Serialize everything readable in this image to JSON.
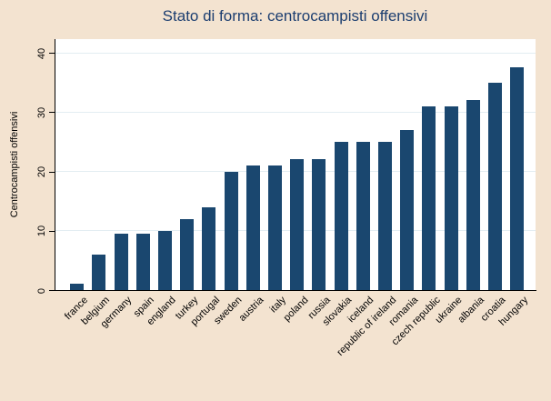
{
  "figure": {
    "background_color": "#f3e3d0",
    "plot_background_color": "#ffffff",
    "bar_color": "#1a476f",
    "grid_color": "#e3edf2",
    "title_color": "#1c3e70",
    "axis_color": "#000000"
  },
  "chart_data": {
    "type": "bar",
    "title": "Stato di forma: centrocampisti offensivi",
    "ylabel": "Centrocampisti offensivi",
    "xlabel": "",
    "categories": [
      "france",
      "belgium",
      "germany",
      "spain",
      "england",
      "turkey",
      "portugal",
      "sweden",
      "austria",
      "italy",
      "poland",
      "russia",
      "slovakia",
      "iceland",
      "republic of ireland",
      "romania",
      "czech republic",
      "ukraine",
      "albania",
      "croatia",
      "hungary"
    ],
    "values": [
      1,
      6,
      9.5,
      9.5,
      10,
      12,
      14,
      20,
      21,
      21,
      22,
      22,
      25,
      25,
      25,
      27,
      31,
      31,
      32,
      35,
      37.5
    ],
    "yticks": [
      0,
      10,
      20,
      30,
      40
    ],
    "ylim": [
      0,
      40
    ],
    "grid": true,
    "legend": "none",
    "x_tick_rotation": 45,
    "y_tick_rotation": 90
  }
}
